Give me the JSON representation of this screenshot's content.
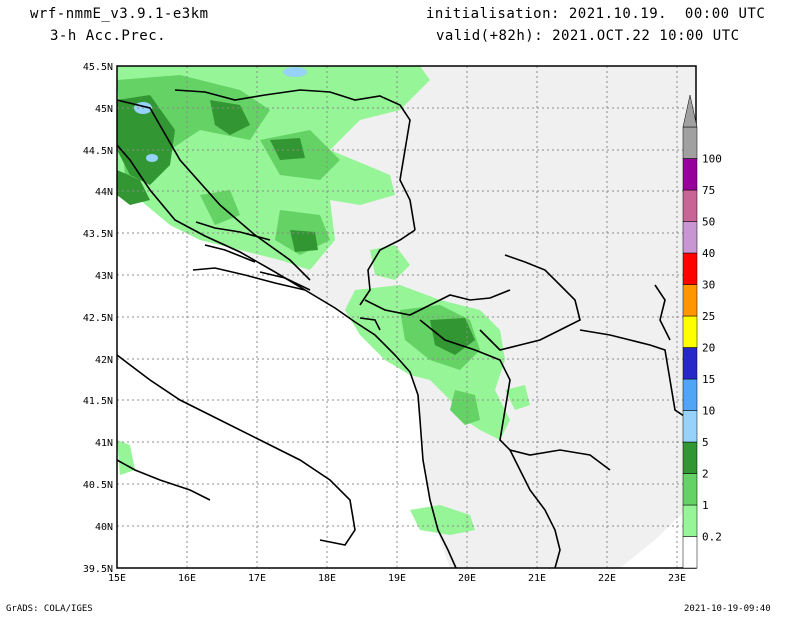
{
  "header": {
    "model": "wrf-nmmE_v3.9.1-e3km",
    "field": "3-h Acc.Prec.",
    "init": "initialisation: 2021.10.19.  00:00 UTC",
    "valid": "valid(+82h): 2021.OCT.22 10:00 UTC"
  },
  "axes": {
    "lat_labels": [
      "45.5N",
      "45N",
      "44.5N",
      "44N",
      "43.5N",
      "43N",
      "42.5N",
      "42N",
      "41.5N",
      "41N",
      "40.5N",
      "40N",
      "39.5N"
    ],
    "lon_labels": [
      "15E",
      "16E",
      "17E",
      "18E",
      "19E",
      "20E",
      "21E",
      "22E",
      "23E"
    ]
  },
  "legend": {
    "levels": [
      "0.2",
      "1",
      "2",
      "5",
      "10",
      "15",
      "20",
      "25",
      "30",
      "40",
      "50",
      "75",
      "100"
    ],
    "colors": [
      "#ffffff",
      "#96f596",
      "#64d264",
      "#329632",
      "#96d2fa",
      "#50a5f5",
      "#2828c8",
      "#ffff00",
      "#ff9600",
      "#ff0000",
      "#c896d2",
      "#c86496",
      "#96009b",
      "#a0a0a0"
    ]
  },
  "colors": {
    "land": "#f0f0f0",
    "sea": "#ffffff",
    "grid": "#8c8c8c"
  },
  "footer": {
    "left": "GrADS: COLA/IGES",
    "right": "2021-10-19-09:40"
  }
}
